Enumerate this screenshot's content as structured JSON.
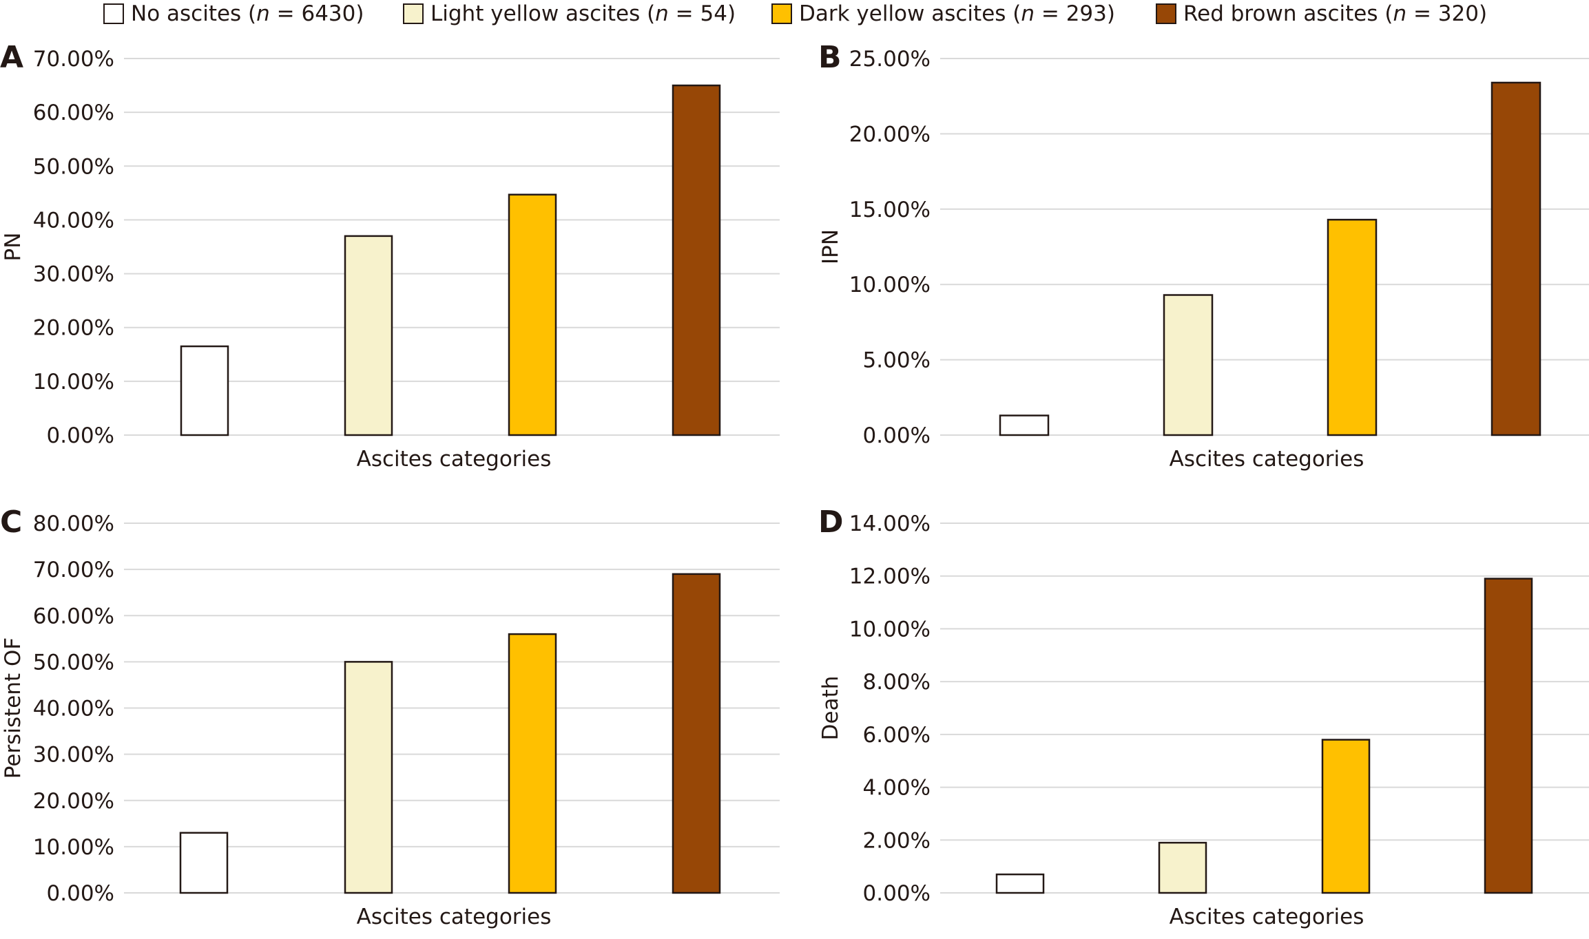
{
  "legend": [
    {
      "pre": "No ascites (",
      "n": "n",
      "post": " = 6430)",
      "color": "#ffffff"
    },
    {
      "pre": "Light yellow ascites (",
      "n": "n",
      "post": " = 54)",
      "color": "#f7f2cc"
    },
    {
      "pre": "Dark yellow  ascites (",
      "n": "n",
      "post": " = 293)",
      "color": "#ffc000"
    },
    {
      "pre": "Red brown ascites (",
      "n": "n",
      "post": " = 320)",
      "color": "#974706"
    }
  ],
  "chart_data": [
    {
      "type": "bar",
      "panel": "A",
      "title": "",
      "xlabel": "Ascites categories",
      "ylabel": "PN",
      "ylim": [
        0,
        70
      ],
      "yticks": [
        "0.00%",
        "10.00%",
        "20.00%",
        "30.00%",
        "40.00%",
        "50.00%",
        "60.00%",
        "70.00%"
      ],
      "categories": [
        "No ascites",
        "Light yellow ascites",
        "Dark yellow ascites",
        "Red brown ascites"
      ],
      "values": [
        16.5,
        37.0,
        44.7,
        65.0
      ],
      "grid": true
    },
    {
      "type": "bar",
      "panel": "B",
      "title": "",
      "xlabel": "Ascites categories",
      "ylabel": "IPN",
      "ylim": [
        0,
        25
      ],
      "yticks": [
        "0.00%",
        "5.00%",
        "10.00%",
        "15.00%",
        "20.00%",
        "25.00%"
      ],
      "categories": [
        "No ascites",
        "Light yellow ascites",
        "Dark yellow ascites",
        "Red brown ascites"
      ],
      "values": [
        1.3,
        9.3,
        14.3,
        23.4
      ],
      "grid": true
    },
    {
      "type": "bar",
      "panel": "C",
      "title": "",
      "xlabel": "Ascites categories",
      "ylabel": "Persistent OF",
      "ylim": [
        0,
        80
      ],
      "yticks": [
        "0.00%",
        "10.00%",
        "20.00%",
        "30.00%",
        "40.00%",
        "50.00%",
        "60.00%",
        "70.00%",
        "80.00%"
      ],
      "categories": [
        "No ascites",
        "Light yellow ascites",
        "Dark yellow ascites",
        "Red brown ascites"
      ],
      "values": [
        13.0,
        50.0,
        56.0,
        69.0
      ],
      "grid": true
    },
    {
      "type": "bar",
      "panel": "D",
      "title": "",
      "xlabel": "Ascites categories",
      "ylabel": "Death",
      "ylim": [
        0,
        14
      ],
      "yticks": [
        "0.00%",
        "2.00%",
        "4.00%",
        "6.00%",
        "8.00%",
        "10.00%",
        "12.00%",
        "14.00%"
      ],
      "categories": [
        "No ascites",
        "Light yellow ascites",
        "Dark yellow ascites",
        "Red brown ascites"
      ],
      "values": [
        0.7,
        1.9,
        5.8,
        11.9
      ],
      "grid": true
    }
  ]
}
